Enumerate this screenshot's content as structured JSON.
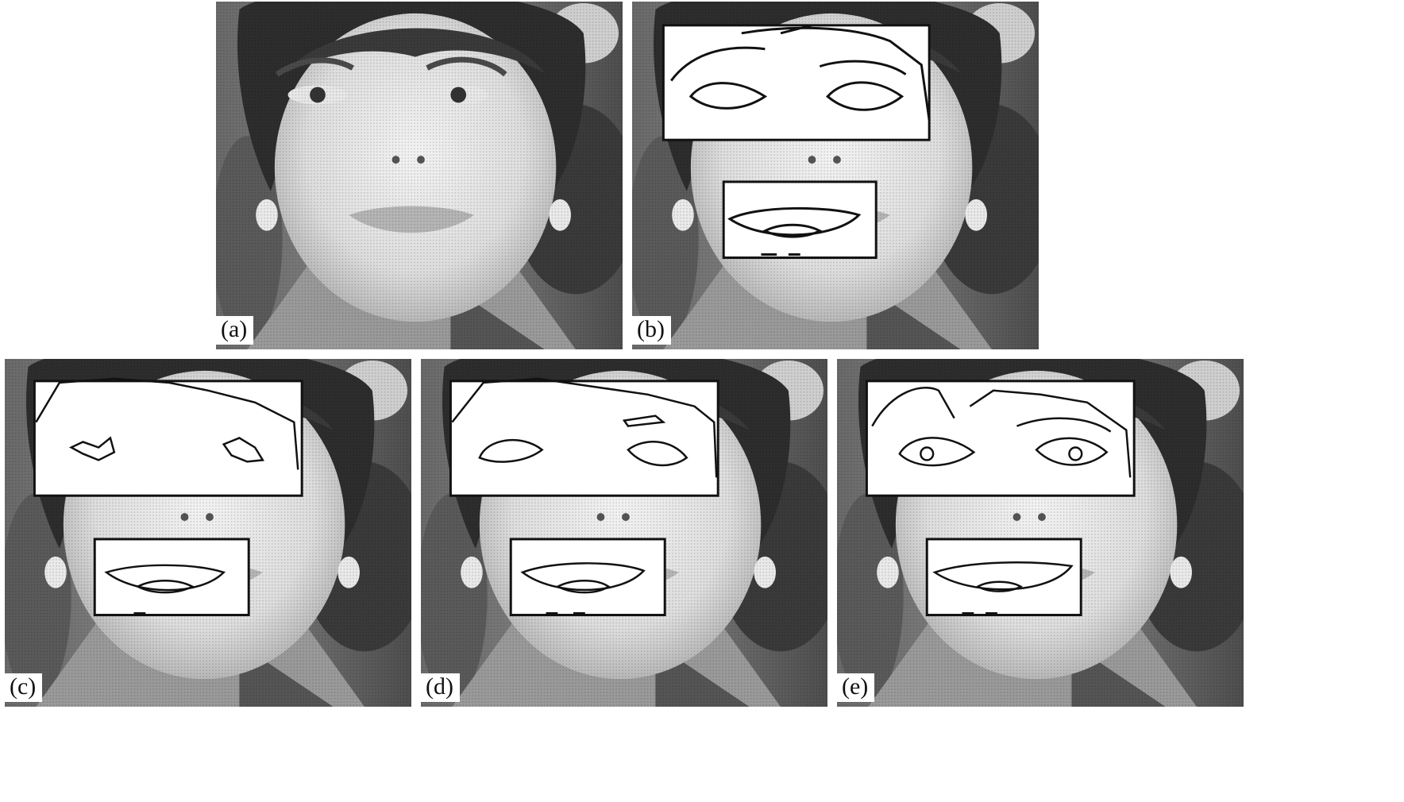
{
  "figure": {
    "panels": [
      {
        "id": "a",
        "label": "(a)",
        "content": "original-face-photo"
      },
      {
        "id": "b",
        "label": "(b)",
        "content": "face-photo-with-feature-edge-maps"
      },
      {
        "id": "c",
        "label": "(c)",
        "content": "face-photo-with-feature-edge-maps"
      },
      {
        "id": "d",
        "label": "(d)",
        "content": "face-photo-with-feature-edge-maps"
      },
      {
        "id": "e",
        "label": "(e)",
        "content": "face-photo-with-feature-edge-maps"
      }
    ]
  }
}
